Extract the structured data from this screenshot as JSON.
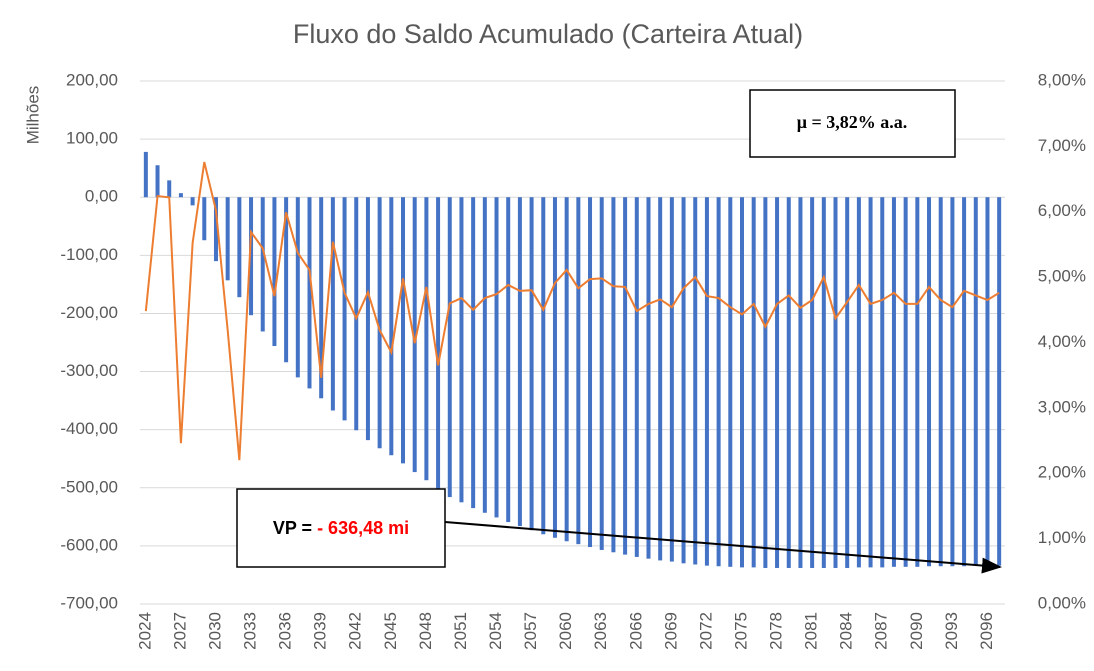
{
  "chart_data": {
    "type": "bar",
    "title": "Fluxo do Saldo Acumulado (Carteira Atual)",
    "ylabel": "Milhões",
    "categories": [
      "2024",
      null,
      null,
      "2027",
      null,
      null,
      "2030",
      null,
      null,
      "2033",
      null,
      null,
      "2036",
      null,
      null,
      "2039",
      null,
      null,
      "2042",
      null,
      null,
      "2045",
      null,
      null,
      "2048",
      null,
      null,
      "2051",
      null,
      null,
      "2054",
      null,
      null,
      "2057",
      null,
      null,
      "2060",
      null,
      null,
      "2063",
      null,
      null,
      "2066",
      null,
      null,
      "2069",
      null,
      null,
      "2072",
      null,
      null,
      "2075",
      null,
      null,
      "2078",
      null,
      null,
      "2081",
      null,
      null,
      "2084",
      null,
      null,
      "2087",
      null,
      null,
      "2090",
      null,
      null,
      "2093",
      null,
      null,
      "2096",
      null
    ],
    "series": [
      {
        "type": "bar",
        "color": "#4472c4",
        "values": [
          78,
          55,
          29,
          7,
          -14,
          -74,
          -110,
          -143,
          -172,
          -203,
          -231,
          -256,
          -284,
          -310,
          -329,
          -346,
          -367,
          -384,
          -401,
          -418,
          -432,
          -444,
          -458,
          -473,
          -487,
          -504,
          -516,
          -525,
          -535,
          -543,
          -551,
          -559,
          -566,
          -573,
          -580,
          -586,
          -592,
          -597,
          -602,
          -607,
          -611,
          -615,
          -619,
          -622,
          -625,
          -627,
          -630,
          -632,
          -634,
          -635,
          -636,
          -637,
          -637,
          -638,
          -638,
          -638,
          -638,
          -638,
          -638,
          -638,
          -638,
          -637,
          -637,
          -637,
          -636,
          -636,
          -636,
          -635,
          -635,
          -635,
          -635,
          -634,
          -634,
          -634
        ]
      },
      {
        "type": "line",
        "axis": "y2",
        "color": "#ed7d31",
        "values": [
          4.48,
          6.24,
          6.22,
          2.46,
          5.52,
          6.76,
          6.02,
          4.19,
          2.2,
          5.69,
          5.44,
          4.71,
          5.99,
          5.37,
          5.11,
          3.46,
          5.54,
          4.76,
          4.37,
          4.77,
          4.19,
          3.85,
          4.98,
          3.99,
          4.85,
          3.65,
          4.6,
          4.68,
          4.5,
          4.68,
          4.74,
          4.88,
          4.79,
          4.8,
          4.5,
          4.91,
          5.11,
          4.83,
          4.97,
          4.98,
          4.86,
          4.85,
          4.48,
          4.59,
          4.66,
          4.54,
          4.83,
          5.0,
          4.71,
          4.68,
          4.54,
          4.43,
          4.59,
          4.24,
          4.59,
          4.72,
          4.53,
          4.65,
          5.0,
          4.37,
          4.62,
          4.88,
          4.59,
          4.65,
          4.76,
          4.59,
          4.59,
          4.85,
          4.65,
          4.54,
          4.79,
          4.72,
          4.65,
          4.76
        ]
      }
    ],
    "ylim": [
      -700,
      200
    ],
    "yticks": [
      {
        "value": -700,
        "label": "-700,00"
      },
      {
        "value": -600,
        "label": "-600,00"
      },
      {
        "value": -500,
        "label": "-500,00"
      },
      {
        "value": -400,
        "label": "-400,00"
      },
      {
        "value": -300,
        "label": "-300,00"
      },
      {
        "value": -200,
        "label": "-200,00"
      },
      {
        "value": -100,
        "label": "-100,00"
      },
      {
        "value": 0,
        "label": "0,00"
      },
      {
        "value": 100,
        "label": "100,00"
      },
      {
        "value": 200,
        "label": "200,00"
      }
    ],
    "y2lim": [
      0,
      8
    ],
    "y2ticks": [
      {
        "value": 0,
        "label": "0,00%"
      },
      {
        "value": 1,
        "label": "1,00%"
      },
      {
        "value": 2,
        "label": "2,00%"
      },
      {
        "value": 3,
        "label": "3,00%"
      },
      {
        "value": 4,
        "label": "4,00%"
      },
      {
        "value": 5,
        "label": "5,00%"
      },
      {
        "value": 6,
        "label": "6,00%"
      },
      {
        "value": 7,
        "label": "7,00%"
      },
      {
        "value": 8,
        "label": "8,00%"
      }
    ],
    "grid": true,
    "annotations": [
      {
        "text": "μ = 3,82% a.a."
      },
      {
        "text": "VP = ",
        "value": "- 636,48 mi"
      }
    ]
  }
}
